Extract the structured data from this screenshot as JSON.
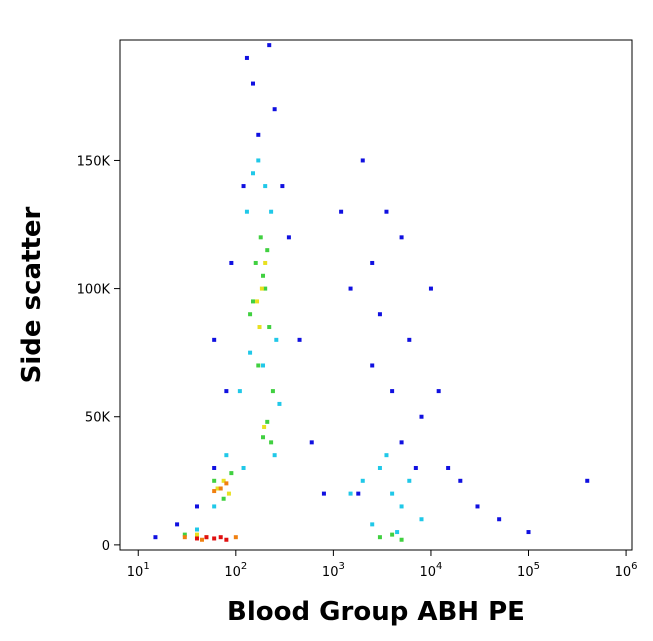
{
  "chart_data": {
    "type": "scatter",
    "xlabel": "Blood Group ABH PE",
    "ylabel": "Side scatter",
    "xscale": "log",
    "xlim": [
      6.5,
      1150000
    ],
    "ylim": [
      -2000,
      197000
    ],
    "xticks": [
      {
        "value": 10,
        "label": "10",
        "exponent": "1"
      },
      {
        "value": 100,
        "label": "10",
        "exponent": "2"
      },
      {
        "value": 1000,
        "label": "10",
        "exponent": "3"
      },
      {
        "value": 10000,
        "label": "10",
        "exponent": "4"
      },
      {
        "value": 100000,
        "label": "10",
        "exponent": "5"
      },
      {
        "value": 1000000,
        "label": "10",
        "exponent": "6"
      }
    ],
    "yticks": [
      0,
      {
        "value": 50000,
        "label": "50K"
      },
      {
        "value": 100000,
        "label": "100K"
      },
      {
        "value": 150000,
        "label": "150K"
      }
    ],
    "series": [
      {
        "color": "#1010e0",
        "x": [
          15,
          25,
          40,
          60,
          80,
          120,
          150,
          250,
          350,
          450,
          600,
          800,
          1200,
          1500,
          2000,
          2500,
          3000,
          4000,
          5000,
          6000,
          8000,
          10000,
          15000,
          20000,
          30000,
          50000,
          100000,
          400000,
          130,
          170,
          220,
          300,
          90,
          60,
          2500,
          3500,
          5000,
          7000,
          1800,
          12000
        ],
        "values": [
          3000,
          8000,
          15000,
          30000,
          60000,
          140000,
          180000,
          170000,
          120000,
          80000,
          40000,
          20000,
          130000,
          100000,
          150000,
          110000,
          90000,
          60000,
          120000,
          80000,
          50000,
          100000,
          30000,
          25000,
          15000,
          10000,
          5000,
          25000,
          190000,
          160000,
          195000,
          140000,
          110000,
          80000,
          70000,
          130000,
          40000,
          30000,
          20000,
          60000
        ]
      },
      {
        "color": "#20c8e8",
        "x": [
          110,
          130,
          150,
          170,
          200,
          230,
          260,
          140,
          190,
          250,
          60,
          80,
          2000,
          3000,
          4000,
          5000,
          6000,
          8000,
          2500,
          3500,
          4500,
          1500,
          120,
          280,
          40
        ],
        "values": [
          60000,
          130000,
          145000,
          150000,
          140000,
          130000,
          80000,
          75000,
          70000,
          35000,
          15000,
          35000,
          25000,
          30000,
          20000,
          15000,
          25000,
          10000,
          8000,
          35000,
          5000,
          20000,
          30000,
          55000,
          6000
        ]
      },
      {
        "color": "#40d040",
        "x": [
          140,
          160,
          180,
          200,
          220,
          170,
          190,
          210,
          60,
          75,
          90,
          190,
          210,
          230,
          30,
          3000,
          4000,
          5000,
          150,
          240
        ],
        "values": [
          90000,
          110000,
          120000,
          100000,
          85000,
          70000,
          105000,
          115000,
          25000,
          18000,
          28000,
          42000,
          48000,
          40000,
          4000,
          3000,
          4000,
          2000,
          95000,
          60000
        ]
      },
      {
        "color": "#e8e020",
        "x": [
          165,
          185,
          200,
          175,
          65,
          75,
          85,
          195,
          50,
          40
        ],
        "values": [
          95000,
          100000,
          110000,
          85000,
          22000,
          25000,
          20000,
          46000,
          3000,
          4000
        ]
      },
      {
        "color": "#f08010",
        "x": [
          70,
          80,
          60,
          30,
          45,
          100
        ],
        "values": [
          22000,
          24000,
          21000,
          3000,
          2000,
          3000
        ]
      },
      {
        "color": "#e01010",
        "x": [
          40,
          50,
          60,
          70,
          80
        ],
        "values": [
          2500,
          3000,
          2500,
          3000,
          2000
        ]
      }
    ]
  }
}
